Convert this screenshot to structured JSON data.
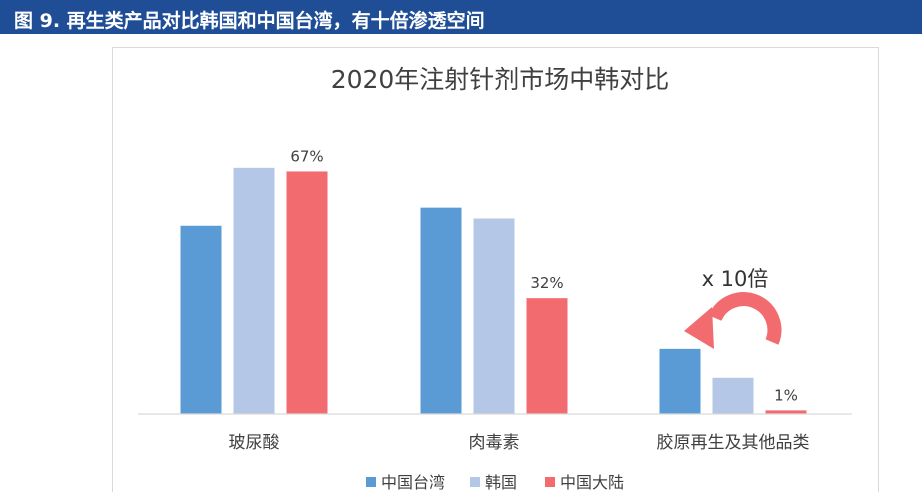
{
  "header": {
    "title": "图 9. 再生类产品对比韩国和中国台湾，有十倍渗透空间"
  },
  "chart_data": {
    "type": "bar",
    "title": "2020年注射针剂市场中韩对比",
    "categories": [
      "玻尿酸",
      "肉毒素",
      "胶原再生及其他品类"
    ],
    "series": [
      {
        "name": "中国台湾",
        "color": "#5b9bd5",
        "values": [
          52,
          57,
          18
        ]
      },
      {
        "name": "韩国",
        "color": "#b4c7e7",
        "values": [
          68,
          54,
          10
        ]
      },
      {
        "name": "中国大陆",
        "color": "#f26b6f",
        "values": [
          67,
          32,
          1
        ]
      }
    ],
    "data_labels": {
      "中国大陆": [
        "67%",
        "32%",
        "1%"
      ]
    },
    "ylim": [
      0,
      100
    ],
    "xlabel": "",
    "ylabel": "",
    "legend_position": "bottom",
    "annotation": {
      "text": "x 10倍",
      "arrow_color": "#f26b6f"
    }
  }
}
